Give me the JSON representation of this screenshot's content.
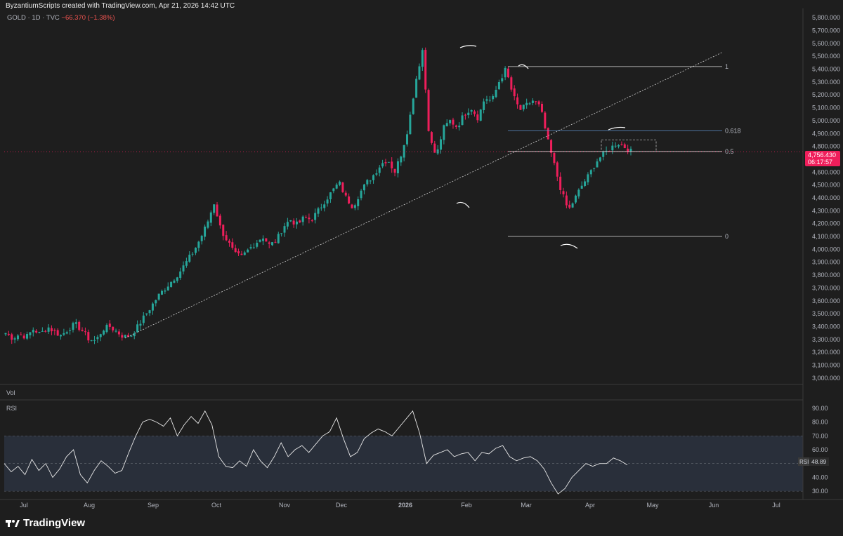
{
  "header": {
    "credit": "ByzantiumScripts created with TradingView.com, Apr 21, 2026 14:42 UTC",
    "symbol": "GOLD · 1D · TVC",
    "change": "−66.370 (−1.38%)"
  },
  "panes": {
    "volume_label": "Vol",
    "rsi_label": "RSI"
  },
  "price_tag": {
    "price": "4,756.430",
    "countdown": "06:17:57"
  },
  "rsi_tag": {
    "label": "RSI",
    "value": "48.89"
  },
  "fib_labels": [
    "1",
    "0.618",
    "0.5",
    "0"
  ],
  "brand": {
    "name": "TradingView"
  },
  "colors": {
    "up": "#26a69a",
    "down": "#ef1e5b",
    "bg": "#1e1e1e",
    "grid": "#2a2a2a",
    "rsi_band": "#2b3240"
  },
  "chart_data": [
    {
      "type": "candlestick",
      "symbol": "GOLD · 1D · TVC",
      "ylim": [
        2950,
        5850
      ],
      "y_ticks": [
        "5,800.000",
        "5,700.000",
        "5,600.000",
        "5,500.000",
        "5,400.000",
        "5,300.000",
        "5,200.000",
        "5,100.000",
        "5,000.000",
        "4,900.000",
        "4,800.000",
        "4,600.000",
        "4,500.000",
        "4,400.000",
        "4,300.000",
        "4,200.000",
        "4,100.000",
        "4,000.000",
        "3,900.000",
        "3,800.000",
        "3,700.000",
        "3,600.000",
        "3,500.000",
        "3,400.000",
        "3,300.000",
        "3,200.000",
        "3,100.000",
        "3,000.000"
      ],
      "y_tick_values": [
        5800,
        5700,
        5600,
        5500,
        5400,
        5300,
        5200,
        5100,
        5000,
        4900,
        4800,
        4600,
        4500,
        4400,
        4300,
        4200,
        4100,
        4000,
        3900,
        3800,
        3700,
        3600,
        3500,
        3400,
        3300,
        3200,
        3100,
        3000
      ],
      "x_ticks": [
        "Jul",
        "Aug",
        "Sep",
        "Oct",
        "Nov",
        "Dec",
        "2026",
        "Feb",
        "Mar",
        "Apr",
        "May",
        "Jun",
        "Jul"
      ],
      "close_path": [
        3350,
        3310,
        3340,
        3320,
        3380,
        3340,
        3400,
        3360,
        3330,
        3380,
        3420,
        3370,
        3300,
        3290,
        3380,
        3400,
        3360,
        3320,
        3330,
        3400,
        3480,
        3560,
        3640,
        3700,
        3760,
        3820,
        3900,
        3980,
        4080,
        4200,
        4360,
        4150,
        4060,
        3960,
        3940,
        4000,
        4050,
        4100,
        4030,
        4070,
        4180,
        4230,
        4190,
        4250,
        4230,
        4300,
        4380,
        4450,
        4520,
        4400,
        4330,
        4440,
        4520,
        4580,
        4660,
        4700,
        4600,
        4750,
        4960,
        5300,
        5550,
        4860,
        4720,
        4940,
        5000,
        4950,
        5050,
        5100,
        5020,
        5180,
        5150,
        5300,
        5400,
        5200,
        5080,
        5120,
        5160,
        5100,
        4850,
        4650,
        4450,
        4300,
        4400,
        4500,
        4580,
        4680,
        4740,
        4780,
        4830,
        4800,
        4760
      ],
      "fib_levels": [
        {
          "label": "1",
          "value": 5420
        },
        {
          "label": "0.618",
          "value": 4920
        },
        {
          "label": "0.5",
          "value": 4760
        },
        {
          "label": "0",
          "value": 4100
        }
      ],
      "last_price": 4756.43,
      "trendline": [
        {
          "x": "Aug",
          "y": 3310
        },
        {
          "x": "Jun",
          "y": 5530
        }
      ]
    },
    {
      "type": "line",
      "title": "RSI",
      "ylim": [
        25,
        95
      ],
      "y_ticks": [
        "90.00",
        "80.00",
        "70.00",
        "60.00",
        "40.00",
        "30.00"
      ],
      "y_tick_values": [
        90,
        80,
        70,
        60,
        40,
        30
      ],
      "band": [
        30,
        70
      ],
      "midline": 50,
      "values": [
        50,
        44,
        48,
        42,
        53,
        45,
        50,
        40,
        46,
        55,
        60,
        42,
        36,
        45,
        52,
        48,
        43,
        45,
        58,
        70,
        80,
        82,
        80,
        77,
        83,
        70,
        78,
        84,
        79,
        88,
        78,
        55,
        48,
        47,
        52,
        48,
        60,
        52,
        47,
        55,
        65,
        55,
        60,
        63,
        58,
        64,
        70,
        73,
        83,
        68,
        55,
        58,
        68,
        72,
        75,
        73,
        70,
        76,
        82,
        88,
        72,
        50,
        56,
        58,
        60,
        55,
        57,
        58,
        52,
        58,
        57,
        61,
        63,
        55,
        52,
        54,
        55,
        52,
        46,
        36,
        28,
        32,
        40,
        45,
        50,
        48,
        50,
        50,
        54,
        52,
        49
      ],
      "last_value": 48.89
    }
  ]
}
